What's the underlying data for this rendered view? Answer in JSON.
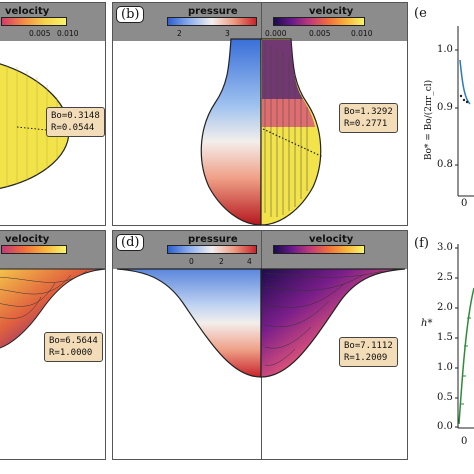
{
  "panels": {
    "a": {
      "colorbar_title": "velocity",
      "ticks": [
        "0.005",
        "0.010"
      ],
      "bo": "Bo=0.3148",
      "r": "R=0.0544"
    },
    "b": {
      "label": "(b)",
      "left_title": "pressure",
      "left_ticks": [
        "2",
        "3"
      ],
      "right_title": "velocity",
      "right_ticks": [
        "0.000",
        "0.005",
        "0.010"
      ],
      "bo": "Bo=1.3292",
      "r": "R=0.2771"
    },
    "c": {
      "colorbar_title": "velocity",
      "bo": "Bo=6.5644",
      "r": "R=1.0000"
    },
    "d": {
      "label": "(d)",
      "left_title": "pressure",
      "left_ticks": [
        "0",
        "2",
        "4"
      ],
      "right_title": "velocity",
      "bo": "Bo=7.1112",
      "r": "R=1.2009"
    },
    "e": {
      "label": "(e",
      "ylabel": "Bo* = Bo/(2πr_cl)",
      "yticks": [
        "1.0",
        "0.9",
        "0.8"
      ],
      "xtick": "0"
    },
    "f": {
      "label": "(f)",
      "ylabel": "h*",
      "yticks": [
        "3.0",
        "2.5",
        "2.0",
        "1.5",
        "1.0",
        "0.5",
        "0.0"
      ],
      "xtick": "0"
    }
  },
  "colors": {
    "header": "#8c8c8c",
    "info_box": "#f3dcb8",
    "droplet_fill": "#f2e34a",
    "curve_blue": "#2b7bb9",
    "curve_green": "#2e8b3a"
  }
}
